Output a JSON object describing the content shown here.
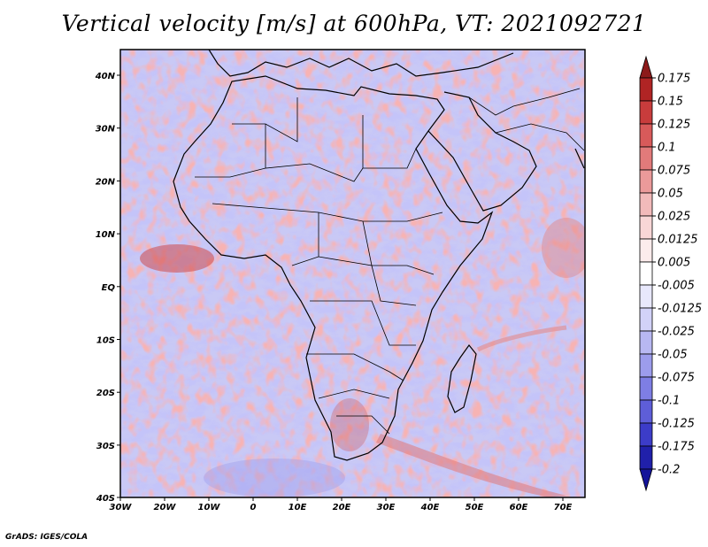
{
  "title": "Vertical velocity [m/s] at 600hPa, VT: 2021092721",
  "credit": "GrADS: IGES/COLA",
  "map": {
    "lon_range": [
      -30,
      75
    ],
    "lat_range": [
      -40,
      45
    ],
    "lon_ticks": [
      "30W",
      "20W",
      "10W",
      "0",
      "10E",
      "20E",
      "30E",
      "40E",
      "50E",
      "60E",
      "70E"
    ],
    "lat_ticks": [
      "40N",
      "30N",
      "20N",
      "10N",
      "EQ",
      "10S",
      "20S",
      "30S",
      "40S"
    ]
  },
  "colorbar": {
    "labels": [
      "0.175",
      "0.15",
      "0.125",
      "0.1",
      "0.075",
      "0.05",
      "0.025",
      "0.0125",
      "0.005",
      "-0.005",
      "-0.0125",
      "-0.025",
      "-0.05",
      "-0.075",
      "-0.1",
      "-0.125",
      "-0.175",
      "-0.2"
    ],
    "colors": [
      "#8c1a1a",
      "#b02424",
      "#c83c3c",
      "#d85a5a",
      "#e27a7a",
      "#eb9a9a",
      "#f2baba",
      "#f8d6d6",
      "#fcecec",
      "#ffffff",
      "#e8e8fc",
      "#d2d2f8",
      "#b8b8f2",
      "#9c9cec",
      "#7e7ee4",
      "#5e5ed8",
      "#3c3cc8",
      "#2020aa",
      "#14149a"
    ]
  }
}
